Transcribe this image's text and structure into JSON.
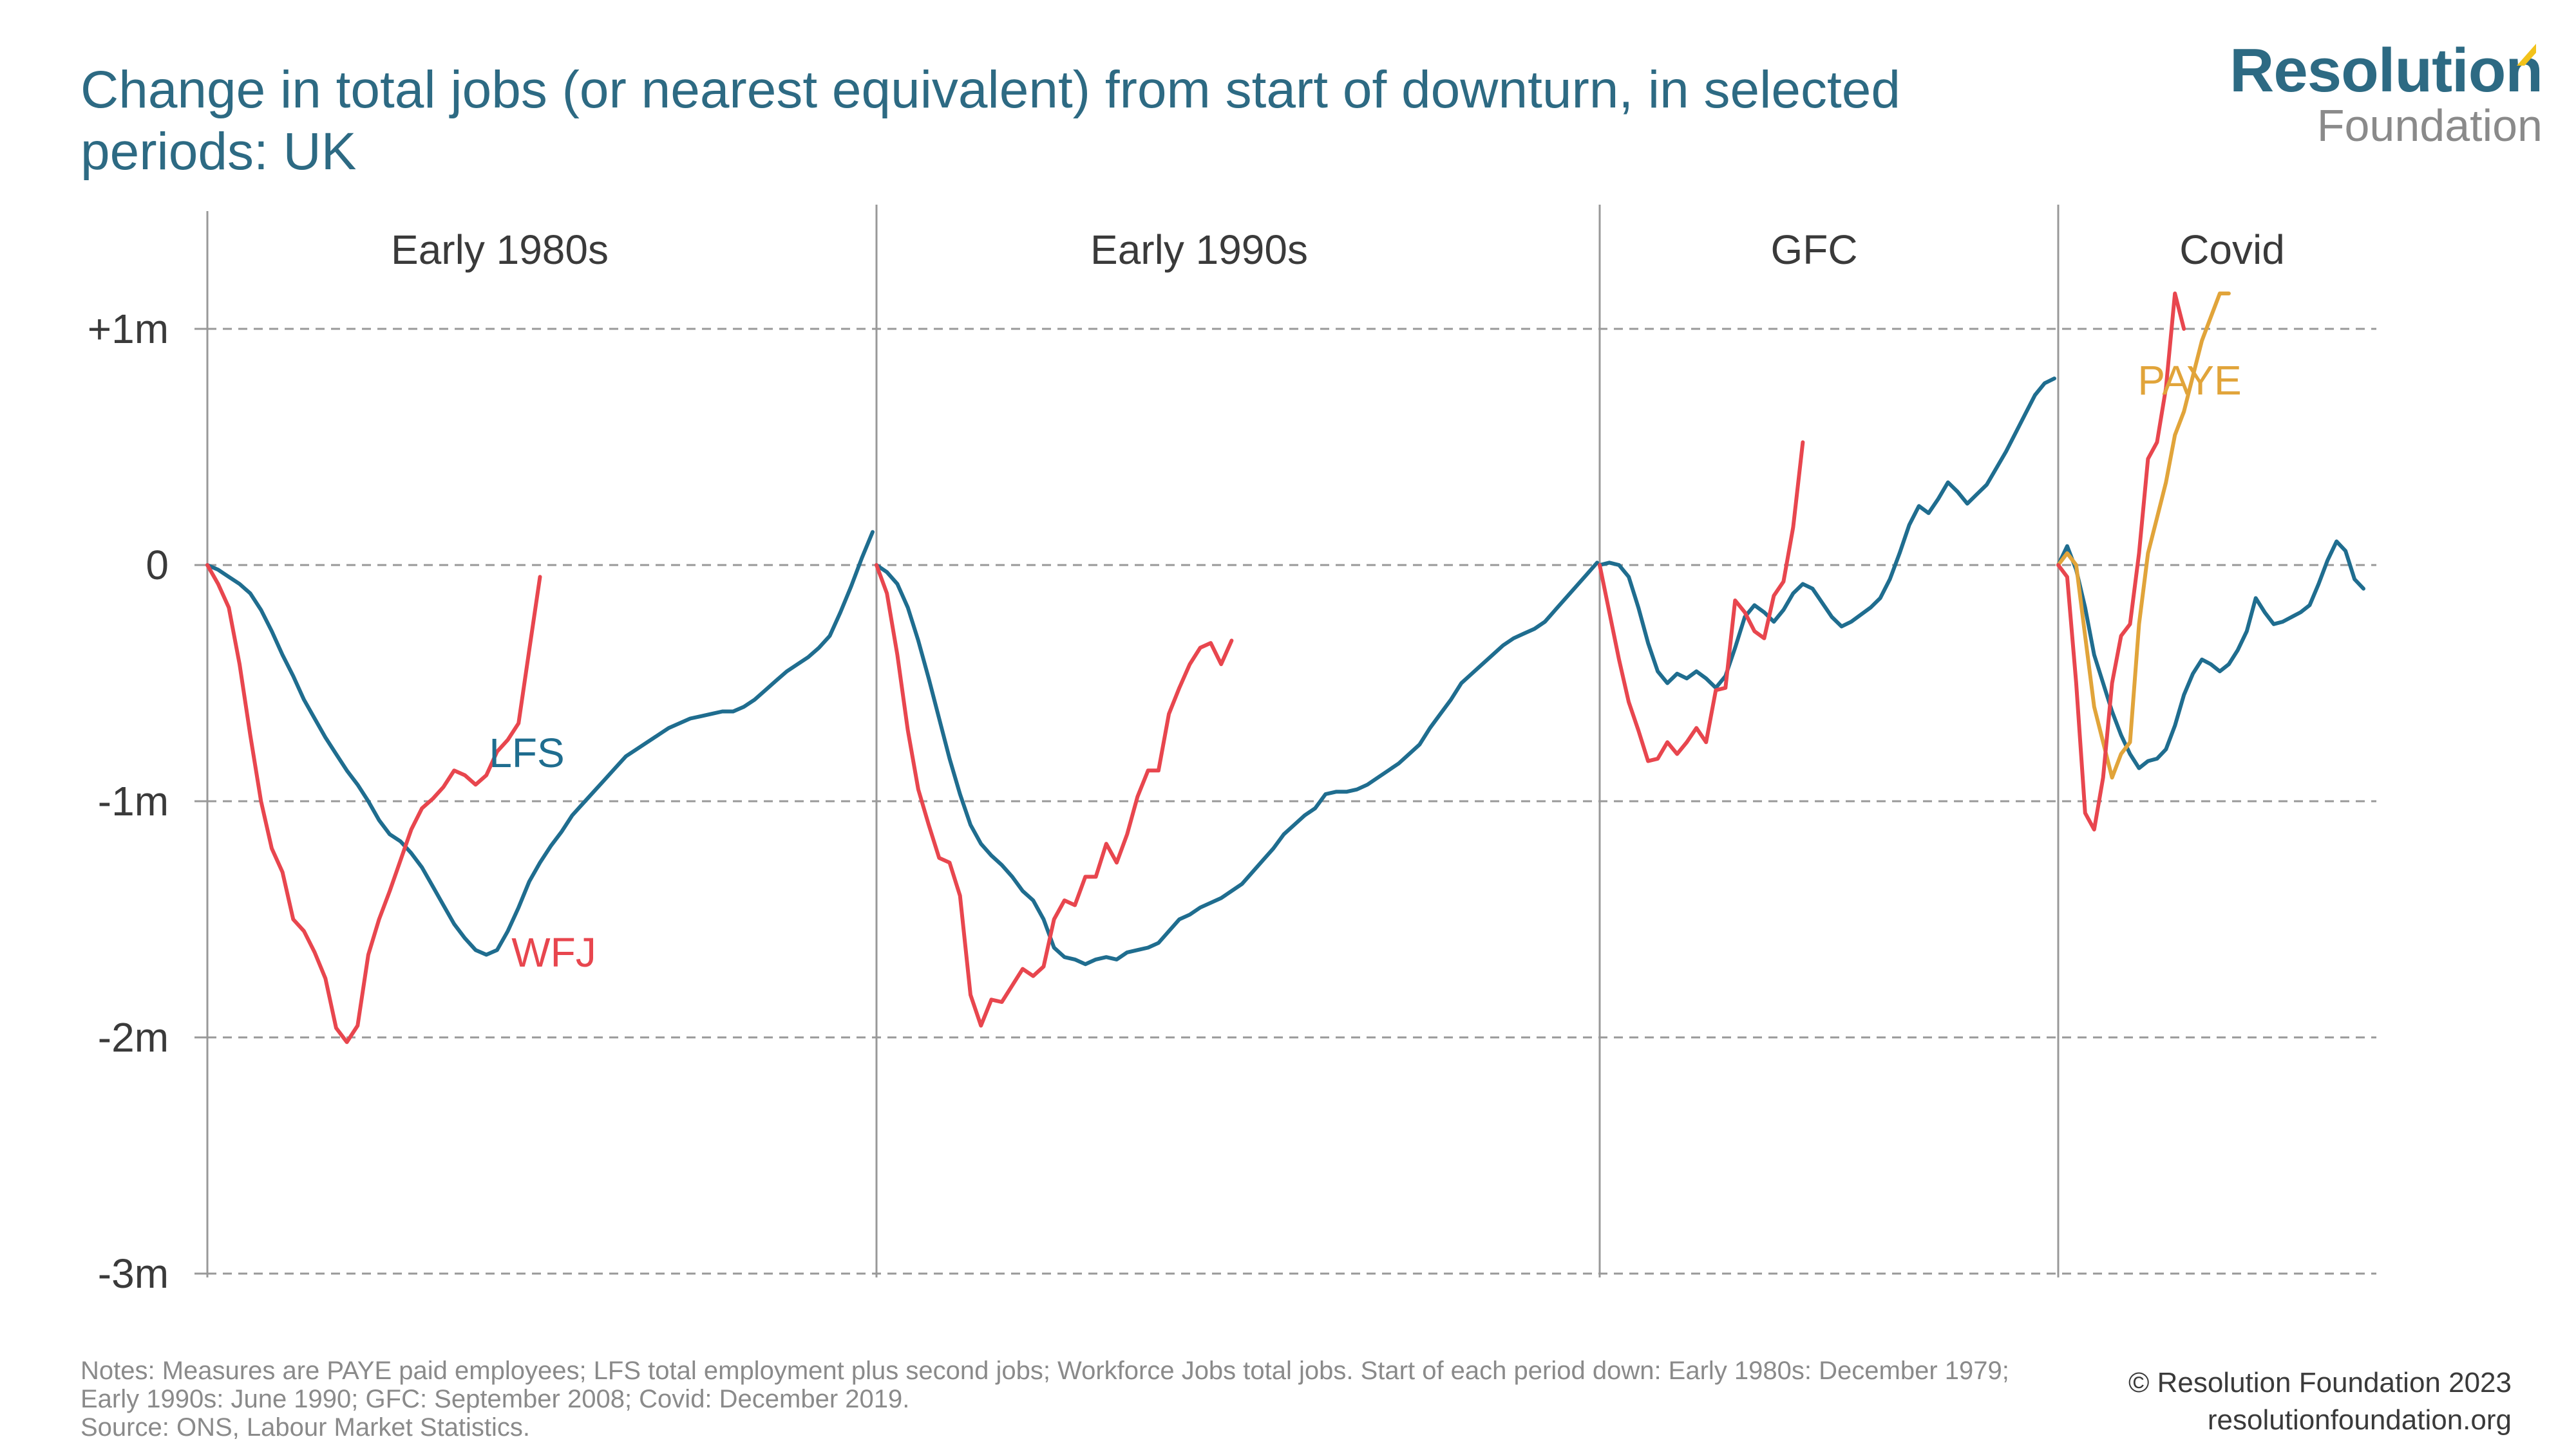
{
  "title": "Change in total jobs (or nearest equivalent) from start of downturn, in selected periods: UK",
  "logo": {
    "top": "Resolution",
    "bottom": "Foundation"
  },
  "notes": [
    "Notes: Measures are PAYE paid employees; LFS total employment plus second jobs; Workforce Jobs total jobs. Start of each period down: Early 1980s: December 1979;",
    "Early 1990s: June 1990; GFC: September 2008; Covid: December 2019.",
    "Source: ONS, Labour Market Statistics."
  ],
  "credit": [
    "© Resolution Foundation 2023",
    "resolutionfoundation.org"
  ],
  "colors": {
    "LFS": "#1f6d8f",
    "WFJ": "#e8464e",
    "PAYE": "#e1a43a",
    "axis": "#999999",
    "grid": "#999999",
    "text": "#3a3a3a"
  },
  "chart_data": {
    "type": "line",
    "title": "Change in total jobs (or nearest equivalent) from start of downturn, in selected periods: UK",
    "ylabel": "",
    "ylim": [
      -3,
      1.4
    ],
    "yticks": [
      1,
      0,
      -1,
      -2,
      -3
    ],
    "ytick_labels": [
      "+1m",
      "0",
      "-1m",
      "-2m",
      "-3m"
    ],
    "grid": true,
    "panels": [
      {
        "name": "Early 1980s",
        "series": [
          {
            "name": "LFS",
            "label": "LFS",
            "values": [
              0,
              -0.02,
              -0.05,
              -0.08,
              -0.12,
              -0.19,
              -0.28,
              -0.38,
              -0.47,
              -0.57,
              -0.65,
              -0.73,
              -0.8,
              -0.87,
              -0.93,
              -1.0,
              -1.08,
              -1.14,
              -1.17,
              -1.22,
              -1.28,
              -1.36,
              -1.44,
              -1.52,
              -1.58,
              -1.63,
              -1.65,
              -1.63,
              -1.55,
              -1.45,
              -1.34,
              -1.26,
              -1.19,
              -1.13,
              -1.06,
              -1.01,
              -0.96,
              -0.91,
              -0.86,
              -0.81,
              -0.78,
              -0.75,
              -0.72,
              -0.69,
              -0.67,
              -0.65,
              -0.64,
              -0.63,
              -0.62,
              -0.62,
              -0.6,
              -0.57,
              -0.53,
              -0.49,
              -0.45,
              -0.42,
              -0.39,
              -0.35,
              -0.3,
              -0.2,
              -0.09,
              0.03,
              0.14
            ]
          },
          {
            "name": "WFJ",
            "label": "WFJ",
            "values": [
              0,
              -0.08,
              -0.18,
              -0.42,
              -0.72,
              -1.0,
              -1.2,
              -1.3,
              -1.5,
              -1.55,
              -1.64,
              -1.75,
              -1.96,
              -2.02,
              -1.95,
              -1.65,
              -1.5,
              -1.38,
              -1.25,
              -1.12,
              -1.03,
              -0.99,
              -0.94,
              -0.87,
              -0.89,
              -0.93,
              -0.89,
              -0.79,
              -0.74,
              -0.67,
              -0.36,
              -0.05
            ]
          }
        ]
      },
      {
        "name": "Early 1990s",
        "series": [
          {
            "name": "LFS",
            "label": "",
            "values": [
              0,
              -0.03,
              -0.08,
              -0.18,
              -0.32,
              -0.48,
              -0.65,
              -0.82,
              -0.97,
              -1.1,
              -1.18,
              -1.23,
              -1.27,
              -1.32,
              -1.38,
              -1.42,
              -1.5,
              -1.62,
              -1.66,
              -1.67,
              -1.69,
              -1.67,
              -1.66,
              -1.67,
              -1.64,
              -1.63,
              -1.62,
              -1.6,
              -1.55,
              -1.5,
              -1.48,
              -1.45,
              -1.43,
              -1.41,
              -1.38,
              -1.35,
              -1.3,
              -1.25,
              -1.2,
              -1.14,
              -1.1,
              -1.06,
              -1.03,
              -0.97,
              -0.96,
              -0.96,
              -0.95,
              -0.93,
              -0.9,
              -0.87,
              -0.84,
              -0.8,
              -0.76,
              -0.69,
              -0.63,
              -0.57,
              -0.5,
              -0.46,
              -0.42,
              -0.38,
              -0.34,
              -0.31,
              -0.29,
              -0.27,
              -0.24,
              -0.19,
              -0.14,
              -0.09,
              -0.04,
              0.01
            ]
          },
          {
            "name": "WFJ",
            "label": "",
            "values": [
              0,
              -0.12,
              -0.38,
              -0.7,
              -0.95,
              -1.1,
              -1.24,
              -1.26,
              -1.4,
              -1.82,
              -1.95,
              -1.84,
              -1.85,
              -1.78,
              -1.71,
              -1.74,
              -1.7,
              -1.5,
              -1.42,
              -1.44,
              -1.32,
              -1.32,
              -1.18,
              -1.26,
              -1.14,
              -0.98,
              -0.87,
              -0.87,
              -0.63,
              -0.52,
              -0.42,
              -0.35,
              -0.33,
              -0.42,
              -0.32
            ]
          }
        ]
      },
      {
        "name": "GFC",
        "series": [
          {
            "name": "LFS",
            "label": "",
            "values": [
              0,
              0.01,
              0.0,
              -0.05,
              -0.18,
              -0.33,
              -0.45,
              -0.5,
              -0.46,
              -0.48,
              -0.45,
              -0.48,
              -0.52,
              -0.47,
              -0.35,
              -0.22,
              -0.17,
              -0.2,
              -0.24,
              -0.19,
              -0.12,
              -0.08,
              -0.1,
              -0.16,
              -0.22,
              -0.26,
              -0.24,
              -0.21,
              -0.18,
              -0.14,
              -0.06,
              0.05,
              0.17,
              0.25,
              0.22,
              0.28,
              0.35,
              0.31,
              0.26,
              0.3,
              0.34,
              0.41,
              0.48,
              0.56,
              0.64,
              0.72,
              0.77,
              0.79
            ]
          },
          {
            "name": "WFJ",
            "label": "",
            "values": [
              0,
              -0.2,
              -0.4,
              -0.58,
              -0.7,
              -0.83,
              -0.82,
              -0.75,
              -0.8,
              -0.75,
              -0.69,
              -0.75,
              -0.53,
              -0.52,
              -0.15,
              -0.2,
              -0.28,
              -0.31,
              -0.13,
              -0.07,
              0.16,
              0.52
            ]
          }
        ]
      },
      {
        "name": "Covid",
        "series": [
          {
            "name": "LFS",
            "label": "",
            "values": [
              0,
              0.08,
              -0.02,
              -0.18,
              -0.38,
              -0.5,
              -0.62,
              -0.72,
              -0.8,
              -0.86,
              -0.83,
              -0.82,
              -0.78,
              -0.68,
              -0.55,
              -0.46,
              -0.4,
              -0.42,
              -0.45,
              -0.42,
              -0.36,
              -0.28,
              -0.14,
              -0.2,
              -0.25,
              -0.24,
              -0.22,
              -0.2,
              -0.17,
              -0.08,
              0.02,
              0.1,
              0.06,
              -0.06,
              -0.1
            ]
          },
          {
            "name": "PAYE",
            "label": "PAYE",
            "values": [
              0,
              0.05,
              0.0,
              -0.3,
              -0.6,
              -0.75,
              -0.9,
              -0.8,
              -0.75,
              -0.25,
              0.05,
              0.2,
              0.35,
              0.55,
              0.65,
              0.8,
              0.95,
              1.05,
              1.15,
              1.15
            ]
          },
          {
            "name": "WFJ",
            "label": "",
            "values": [
              0,
              -0.05,
              -0.5,
              -1.05,
              -1.12,
              -0.9,
              -0.5,
              -0.3,
              -0.25,
              0.05,
              0.45,
              0.52,
              0.75,
              1.15,
              1.0
            ]
          }
        ]
      }
    ]
  }
}
